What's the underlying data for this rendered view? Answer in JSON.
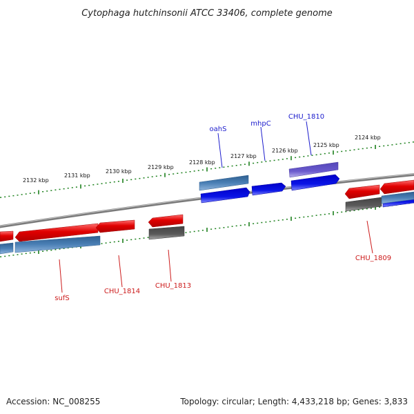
{
  "title": "Cytophaga hutchinsonii ATCC 33406, complete genome",
  "footer": {
    "accession": "Accession: NC_008255",
    "topology": "Topology: circular; Length: 4,433,218 bp; Genes: 3,833"
  },
  "colors": {
    "backbone": "#808080",
    "tick": "#1a7f1a",
    "label_top": "#1a1acc",
    "label_bottom": "#cc1a1a",
    "red_gene": "#e00000",
    "steel_gene": "#4a7fb5",
    "blue_gene": "#0a14e6",
    "gray_gene": "#5a5a5a",
    "violet_gene": "#6a5acd"
  },
  "scale_labels": [
    "2132 kbp",
    "2131 kbp",
    "2130 kbp",
    "2129 kbp",
    "2128 kbp",
    "2127 kbp",
    "2126 kbp",
    "2125 kbp",
    "2124 kbp"
  ],
  "top_labels": [
    "oahS",
    "mhpC",
    "CHU_1810"
  ],
  "bottom_labels": [
    "sufS",
    "CHU_1814",
    "CHU_1813",
    "CHU_1809"
  ]
}
